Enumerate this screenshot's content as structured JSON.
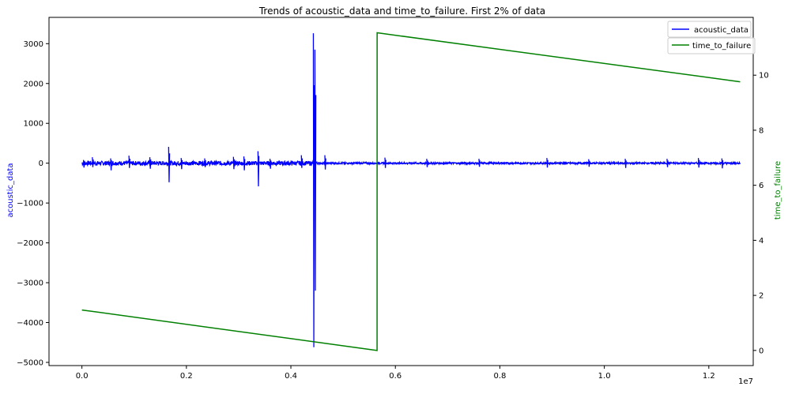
{
  "chart_data": {
    "type": "line",
    "title": "Trends of acoustic_data and time_to_failure. First 2% of data",
    "xlabel": "",
    "x_scale_note": "1e7",
    "xlim": [
      -0.063,
      1.285
    ],
    "x_ticks": [
      0.0,
      0.2,
      0.4,
      0.6,
      0.8,
      1.0,
      1.2
    ],
    "x_tick_labels": [
      "0.0",
      "0.2",
      "0.4",
      "0.6",
      "0.8",
      "1.0",
      "1.2"
    ],
    "y_left": {
      "label": "acoustic_data",
      "color": "#0000ff",
      "lim": [
        -5080,
        3660
      ],
      "ticks": [
        -5000,
        -4000,
        -3000,
        -2000,
        -1000,
        0,
        1000,
        2000,
        3000
      ],
      "tick_labels": [
        "−5000",
        "−4000",
        "−3000",
        "−2000",
        "−1000",
        "0",
        "1000",
        "2000",
        "3000"
      ]
    },
    "y_right": {
      "label": "time_to_failure",
      "color": "#008000",
      "lim": [
        -0.55,
        12.1
      ],
      "ticks": [
        0,
        2,
        4,
        6,
        8,
        10
      ],
      "tick_labels": [
        "0",
        "2",
        "4",
        "6",
        "8",
        "10"
      ]
    },
    "legend": {
      "placement": "top-right"
    },
    "grid": false,
    "series": [
      {
        "name": "acoustic_data",
        "axis": "left",
        "color": "#0000ff",
        "kind": "noisy-baseline",
        "baseline": 0,
        "x_range": [
          0.0,
          1.26
        ],
        "spikes": [
          {
            "x": 0.003,
            "min": -110,
            "max": 80
          },
          {
            "x": 0.02,
            "min": -100,
            "max": 150
          },
          {
            "x": 0.055,
            "min": -180,
            "max": 120
          },
          {
            "x": 0.09,
            "min": -120,
            "max": 190
          },
          {
            "x": 0.13,
            "min": -140,
            "max": 150
          },
          {
            "x": 0.166,
            "min": -480,
            "max": 410
          },
          {
            "x": 0.19,
            "min": -150,
            "max": 130
          },
          {
            "x": 0.235,
            "min": -100,
            "max": 120
          },
          {
            "x": 0.29,
            "min": -150,
            "max": 160
          },
          {
            "x": 0.31,
            "min": -180,
            "max": 170
          },
          {
            "x": 0.337,
            "min": -580,
            "max": 300
          },
          {
            "x": 0.36,
            "min": -140,
            "max": 110
          },
          {
            "x": 0.42,
            "min": -120,
            "max": 200
          },
          {
            "x": 0.443,
            "min": -4620,
            "max": 3260
          },
          {
            "x": 0.446,
            "min": -3200,
            "max": 2850
          },
          {
            "x": 0.465,
            "min": -160,
            "max": 200
          },
          {
            "x": 0.58,
            "min": -120,
            "max": 140
          },
          {
            "x": 0.66,
            "min": -100,
            "max": 110
          },
          {
            "x": 0.76,
            "min": -90,
            "max": 110
          },
          {
            "x": 0.89,
            "min": -110,
            "max": 130
          },
          {
            "x": 0.97,
            "min": -90,
            "max": 100
          },
          {
            "x": 1.04,
            "min": -120,
            "max": 110
          },
          {
            "x": 1.12,
            "min": -100,
            "max": 110
          },
          {
            "x": 1.18,
            "min": -110,
            "max": 130
          },
          {
            "x": 1.225,
            "min": -130,
            "max": 120
          }
        ]
      },
      {
        "name": "time_to_failure",
        "axis": "right",
        "color": "#008000",
        "x": [
          0.0,
          0.565,
          0.5651,
          1.26
        ],
        "y": [
          1.47,
          0.0,
          11.54,
          9.76
        ]
      }
    ]
  }
}
